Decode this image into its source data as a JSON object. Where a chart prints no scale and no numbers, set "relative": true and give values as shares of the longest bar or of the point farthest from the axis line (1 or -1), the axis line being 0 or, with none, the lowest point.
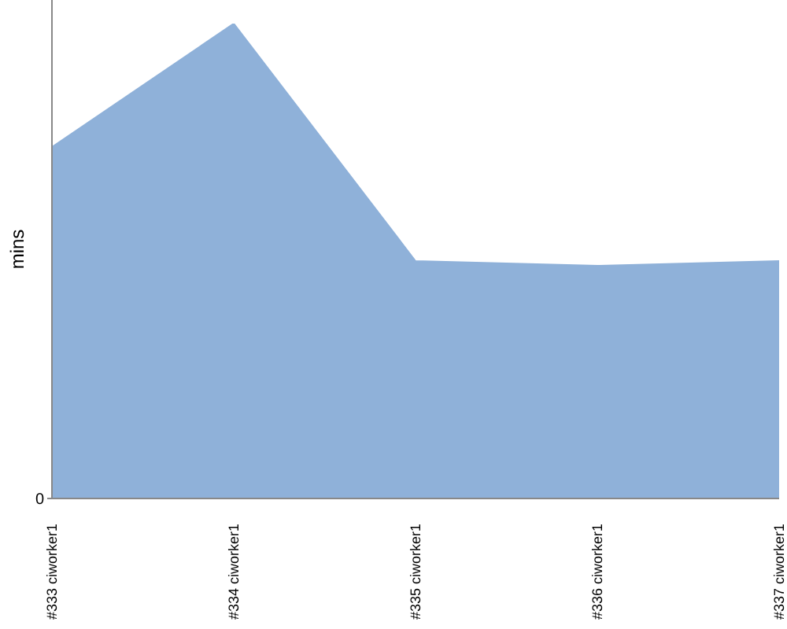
{
  "chart_data": {
    "type": "area",
    "ylabel": "mins",
    "categories": [
      "#333 ciworker1",
      "#334 ciworker1",
      "#335 ciworker1",
      "#336 ciworker1",
      "#337 ciworker1"
    ],
    "values": [
      0.74,
      1,
      0.5,
      0.49,
      0.5
    ],
    "color": "#8fb1d9",
    "relative": true,
    "annotations": [
      "0"
    ]
  }
}
